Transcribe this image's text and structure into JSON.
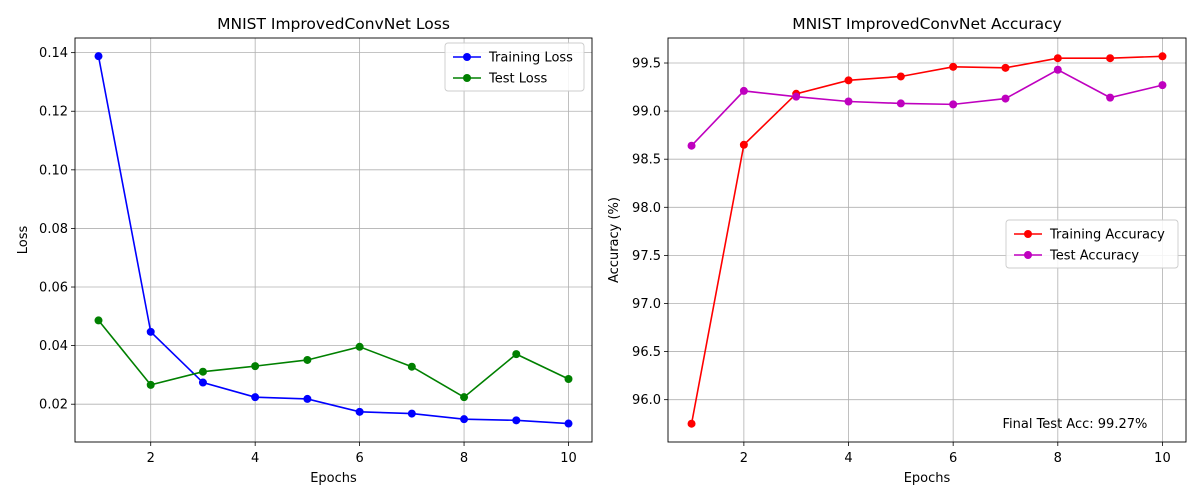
{
  "chart_data": [
    {
      "type": "line",
      "title": "MNIST ImprovedConvNet Loss",
      "xlabel": "Epochs",
      "ylabel": "Loss",
      "x": [
        1,
        2,
        3,
        4,
        5,
        6,
        7,
        8,
        9,
        10
      ],
      "xlim": [
        0.55,
        10.45
      ],
      "ylim": [
        0.0071,
        0.145
      ],
      "xticks": [
        2,
        4,
        6,
        8,
        10
      ],
      "xtick_labels": [
        "2",
        "4",
        "6",
        "8",
        "10"
      ],
      "yticks": [
        0.02,
        0.04,
        0.06,
        0.08,
        0.1,
        0.12,
        0.14
      ],
      "ytick_labels": [
        "0.02",
        "0.04",
        "0.06",
        "0.08",
        "0.10",
        "0.12",
        "0.14"
      ],
      "grid": true,
      "legend_position": "upper right",
      "series": [
        {
          "name": "Training Loss",
          "color": "#0000ff",
          "values": [
            0.1388,
            0.0447,
            0.0274,
            0.0224,
            0.0218,
            0.0174,
            0.0168,
            0.0149,
            0.0145,
            0.0134
          ]
        },
        {
          "name": "Test Loss",
          "color": "#008000",
          "values": [
            0.0486,
            0.0266,
            0.0311,
            0.033,
            0.0351,
            0.0396,
            0.0328,
            0.0224,
            0.0371,
            0.0286
          ]
        }
      ]
    },
    {
      "type": "line",
      "title": "MNIST ImprovedConvNet Accuracy",
      "xlabel": "Epochs",
      "ylabel": "Accuracy (%)",
      "x": [
        1,
        2,
        3,
        4,
        5,
        6,
        7,
        8,
        9,
        10
      ],
      "xlim": [
        0.55,
        10.45
      ],
      "ylim": [
        95.56,
        99.76
      ],
      "xticks": [
        2,
        4,
        6,
        8,
        10
      ],
      "xtick_labels": [
        "2",
        "4",
        "6",
        "8",
        "10"
      ],
      "yticks": [
        96.0,
        96.5,
        97.0,
        97.5,
        98.0,
        98.5,
        99.0,
        99.5
      ],
      "ytick_labels": [
        "96.0",
        "96.5",
        "97.0",
        "97.5",
        "98.0",
        "98.5",
        "99.0",
        "99.5"
      ],
      "grid": true,
      "legend_position": "center right",
      "annotation": "Final Test Acc: 99.27%",
      "series": [
        {
          "name": "Training Accuracy",
          "color": "#ff0000",
          "values": [
            95.75,
            98.65,
            99.18,
            99.32,
            99.36,
            99.46,
            99.45,
            99.55,
            99.55,
            99.57
          ]
        },
        {
          "name": "Test Accuracy",
          "color": "#bf00bf",
          "values": [
            98.64,
            99.21,
            99.15,
            99.1,
            99.08,
            99.07,
            99.13,
            99.43,
            99.14,
            99.27
          ]
        }
      ]
    }
  ]
}
